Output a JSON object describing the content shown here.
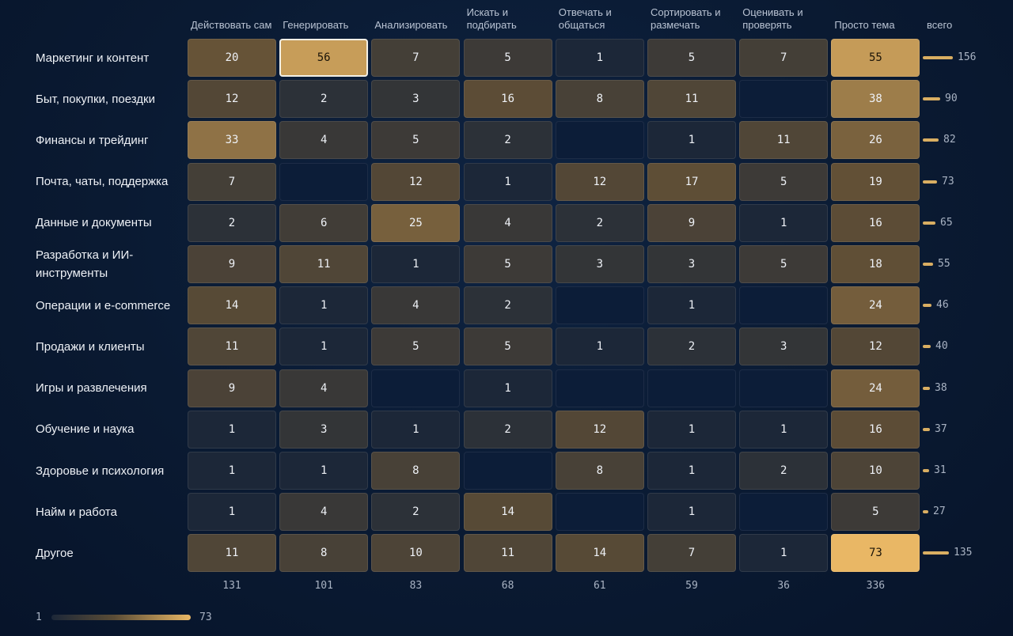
{
  "chart_data": {
    "type": "heatmap",
    "columns": [
      "Действовать сам",
      "Генерировать",
      "Анализировать",
      "Искать и подбирать",
      "Отвечать и общаться",
      "Сортировать и размечать",
      "Оценивать и проверять",
      "Просто тема"
    ],
    "total_label": "всего",
    "rows": [
      "Маркетинг и контент",
      "Быт, покупки, поездки",
      "Финансы и трейдинг",
      "Почта, чаты, поддержка",
      "Данные и документы",
      "Разработка и ИИ-инструменты",
      "Операции и e-commerce",
      "Продажи и клиенты",
      "Игры и развлечения",
      "Обучение и наука",
      "Здоровье и психология",
      "Найм и работа",
      "Другое"
    ],
    "values": [
      [
        20,
        56,
        7,
        5,
        1,
        5,
        7,
        55
      ],
      [
        12,
        2,
        3,
        16,
        8,
        11,
        null,
        38
      ],
      [
        33,
        4,
        5,
        2,
        null,
        1,
        11,
        26
      ],
      [
        7,
        null,
        12,
        1,
        12,
        17,
        5,
        19
      ],
      [
        2,
        6,
        25,
        4,
        2,
        9,
        1,
        16
      ],
      [
        9,
        11,
        1,
        5,
        3,
        3,
        5,
        18
      ],
      [
        14,
        1,
        4,
        2,
        null,
        1,
        null,
        24
      ],
      [
        11,
        1,
        5,
        5,
        1,
        2,
        3,
        12
      ],
      [
        9,
        4,
        null,
        1,
        null,
        null,
        null,
        24
      ],
      [
        1,
        3,
        1,
        2,
        12,
        1,
        1,
        16
      ],
      [
        1,
        1,
        8,
        null,
        8,
        1,
        2,
        10
      ],
      [
        1,
        4,
        2,
        14,
        null,
        1,
        null,
        5
      ],
      [
        11,
        8,
        10,
        11,
        14,
        7,
        1,
        73
      ]
    ],
    "row_totals": [
      156,
      90,
      82,
      73,
      65,
      55,
      46,
      40,
      38,
      37,
      31,
      27,
      135
    ],
    "column_totals": [
      131,
      101,
      83,
      68,
      61,
      59,
      36,
      336
    ],
    "highlighted_cell": {
      "row": 0,
      "column": 1
    },
    "color_scale": {
      "min": 1,
      "max": 73,
      "low_color": "#1c2738",
      "high_color": "#e9b765"
    }
  }
}
